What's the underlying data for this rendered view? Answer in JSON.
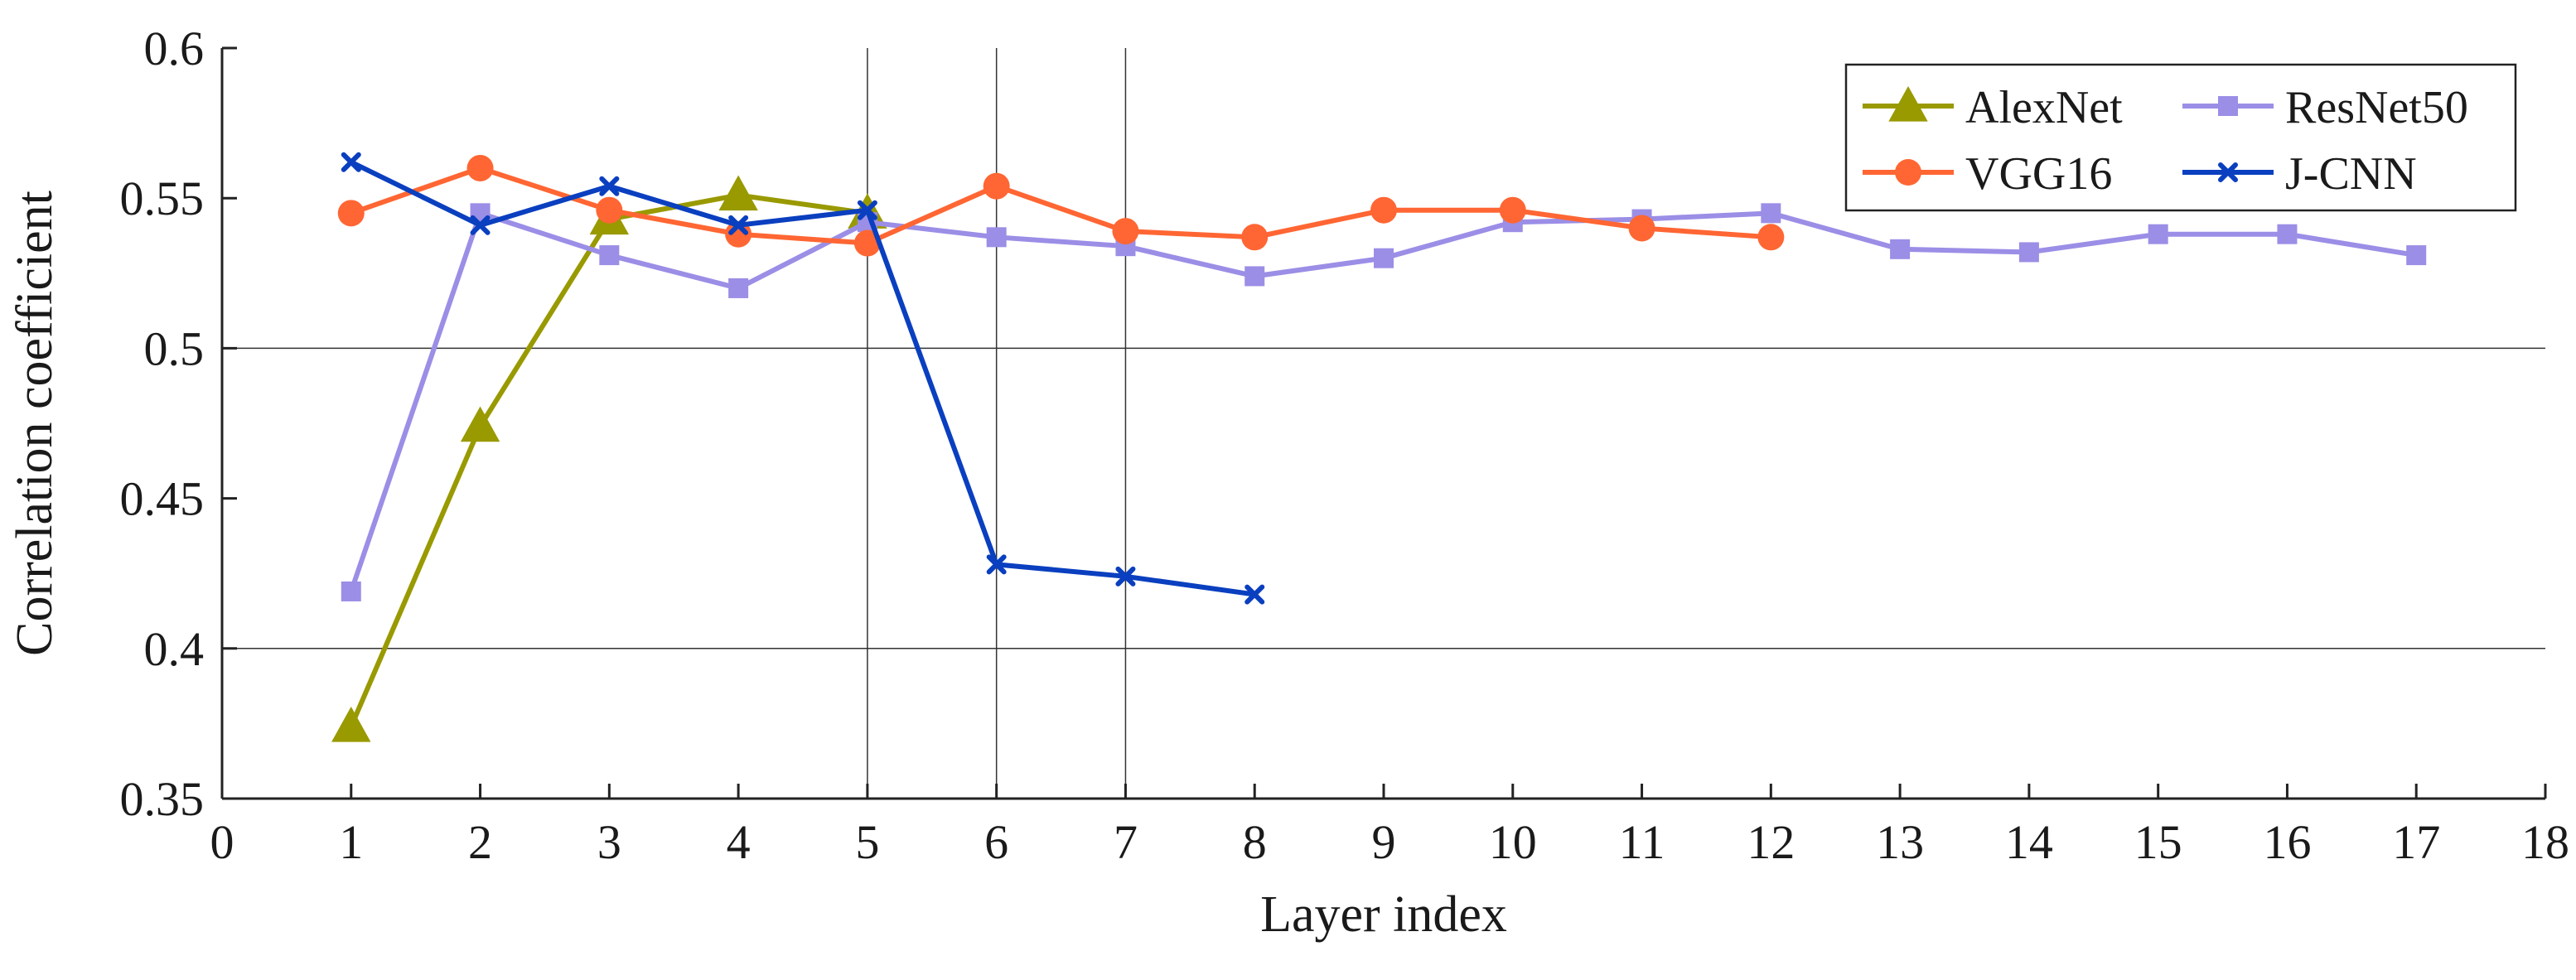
{
  "chart_data": {
    "type": "line",
    "title": "",
    "xlabel": "Layer index",
    "ylabel": "Correlation coefficient",
    "xlim": [
      0,
      18
    ],
    "ylim": [
      0.35,
      0.6
    ],
    "xticks": [
      0,
      1,
      2,
      3,
      4,
      5,
      6,
      7,
      8,
      9,
      10,
      11,
      12,
      13,
      14,
      15,
      16,
      17,
      18
    ],
    "yticks": [
      0.35,
      0.4,
      0.45,
      0.5,
      0.55,
      0.6
    ],
    "ytick_labels": [
      "0.35",
      "0.4",
      "0.45",
      "0.5",
      "0.55",
      "0.6"
    ],
    "horizontal_gridlines": [
      0.4,
      0.5
    ],
    "vertical_gridlines": [
      5,
      6,
      7
    ],
    "legend_position": "top-right",
    "series": [
      {
        "name": "AlexNet",
        "color": "#999900",
        "marker": "triangle",
        "x": [
          1,
          2,
          3,
          4,
          5
        ],
        "y": [
          0.374,
          0.474,
          0.543,
          0.551,
          0.545
        ]
      },
      {
        "name": "ResNet50",
        "color": "#9b8ee6",
        "marker": "square",
        "x": [
          1,
          2,
          3,
          4,
          5,
          6,
          7,
          8,
          9,
          10,
          11,
          12,
          13,
          14,
          15,
          16,
          17
        ],
        "y": [
          0.419,
          0.545,
          0.531,
          0.52,
          0.542,
          0.537,
          0.534,
          0.524,
          0.53,
          0.542,
          0.543,
          0.545,
          0.533,
          0.532,
          0.538,
          0.538,
          0.531
        ]
      },
      {
        "name": "VGG16",
        "color": "#ff6633",
        "marker": "circle",
        "x": [
          1,
          2,
          3,
          4,
          5,
          6,
          7,
          8,
          9,
          10,
          11,
          12
        ],
        "y": [
          0.545,
          0.56,
          0.546,
          0.538,
          0.535,
          0.554,
          0.539,
          0.537,
          0.546,
          0.546,
          0.54,
          0.537
        ]
      },
      {
        "name": "J-CNN",
        "color": "#0a3fbf",
        "marker": "x",
        "x": [
          1,
          2,
          3,
          4,
          5,
          6,
          7,
          8
        ],
        "y": [
          0.562,
          0.541,
          0.554,
          0.541,
          0.546,
          0.428,
          0.424,
          0.418
        ]
      }
    ],
    "legend_order": [
      "AlexNet",
      "ResNet50",
      "VGG16",
      "J-CNN"
    ]
  }
}
